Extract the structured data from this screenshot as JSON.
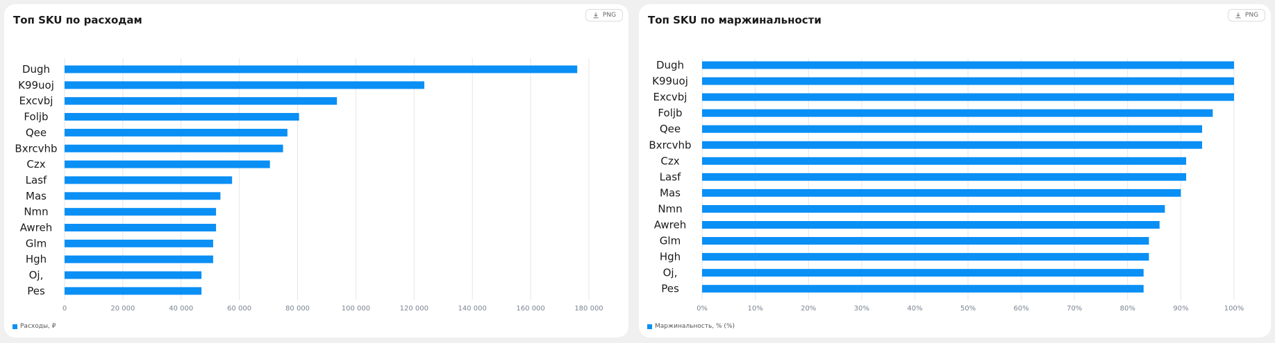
{
  "colors": {
    "bar": "#0a8ff5",
    "grid": "#e6e6e6",
    "panel_background": "#ffffff",
    "page_background": "#f0f0f0"
  },
  "icons": [
    "download-icon"
  ],
  "panels": [
    {
      "title": "Топ SKU по расходам",
      "png_button_label": "PNG",
      "legend_label": "Расходы, ₽"
    },
    {
      "title": "Топ SKU по маржинальности",
      "png_button_label": "PNG",
      "legend_label": "Маржинальность, % (%)"
    }
  ],
  "chart_data": [
    {
      "type": "bar",
      "orientation": "horizontal",
      "title": "Топ SKU по расходам",
      "categories": [
        "Dugh",
        "K99uoj",
        "Excvbj",
        "Foljb",
        "Qee",
        "Bxrcvhb",
        "Czx",
        "Lasf",
        "Mas",
        "Nmn",
        "Awreh",
        "Glm",
        "Hgh",
        "Oj,",
        "Pes"
      ],
      "series": [
        {
          "name": "Расходы, ₽",
          "values": [
            176000,
            123500,
            93500,
            80500,
            76500,
            75000,
            70500,
            57500,
            53500,
            52000,
            52000,
            51000,
            51000,
            47000,
            47000
          ]
        }
      ],
      "xlim": [
        0,
        180000
      ],
      "xticks": [
        0,
        20000,
        40000,
        60000,
        80000,
        100000,
        120000,
        140000,
        160000,
        180000
      ],
      "xtick_labels": [
        "0",
        "20 000",
        "40 000",
        "60 000",
        "80 000",
        "100 000",
        "120 000",
        "140 000",
        "160 000",
        "180 000"
      ],
      "grid": true,
      "legend_position": "bottom-left"
    },
    {
      "type": "bar",
      "orientation": "horizontal",
      "title": "Топ SKU по маржинальности",
      "categories": [
        "Dugh",
        "K99uoj",
        "Excvbj",
        "Foljb",
        "Qee",
        "Bxrcvhb",
        "Czx",
        "Lasf",
        "Mas",
        "Nmn",
        "Awreh",
        "Glm",
        "Hgh",
        "Oj,",
        "Pes"
      ],
      "series": [
        {
          "name": "Маржинальность, % (%)",
          "values": [
            100,
            100,
            100,
            96,
            94,
            94,
            91,
            91,
            90,
            87,
            86,
            84,
            84,
            83,
            83
          ]
        }
      ],
      "xlim": [
        0,
        100
      ],
      "xticks": [
        0,
        10,
        20,
        30,
        40,
        50,
        60,
        70,
        80,
        90,
        100
      ],
      "xtick_labels": [
        "0%",
        "10%",
        "20%",
        "30%",
        "40%",
        "50%",
        "60%",
        "70%",
        "80%",
        "90%",
        "100%"
      ],
      "grid": true,
      "legend_position": "bottom-left"
    }
  ]
}
